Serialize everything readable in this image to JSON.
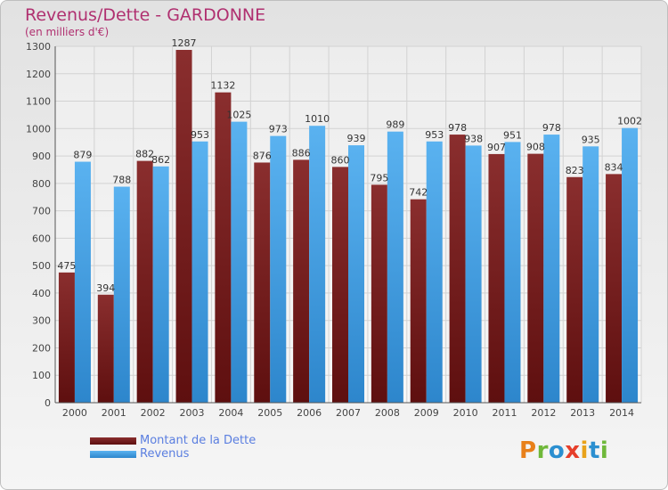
{
  "chart_data": {
    "type": "bar",
    "title": "Revenus/Dette - GARDONNE",
    "subtitle": "(en milliers d'€)",
    "xlabel": "",
    "ylabel": "",
    "ylim": [
      0,
      1300
    ],
    "y_ticks": [
      0,
      100,
      200,
      300,
      400,
      500,
      600,
      700,
      800,
      900,
      1000,
      1100,
      1200,
      1300
    ],
    "grid": true,
    "legend_position": "bottom-left",
    "categories": [
      "2000",
      "2001",
      "2002",
      "2003",
      "2004",
      "2005",
      "2006",
      "2007",
      "2008",
      "2009",
      "2010",
      "2011",
      "2012",
      "2013",
      "2014"
    ],
    "series": [
      {
        "name": "Montant de la Dette",
        "color": "#7a2525",
        "values": [
          475,
          394,
          882,
          1287,
          1132,
          876,
          886,
          860,
          795,
          742,
          978,
          907,
          908,
          823,
          834
        ]
      },
      {
        "name": "Revenus",
        "color": "#4fa6e6",
        "values": [
          879,
          788,
          862,
          953,
          1025,
          973,
          1010,
          939,
          989,
          953,
          938,
          951,
          978,
          935,
          1002
        ]
      }
    ]
  },
  "logo": {
    "letters": [
      {
        "char": "P",
        "color": "#e8801a"
      },
      {
        "char": "r",
        "color": "#6fb83a"
      },
      {
        "char": "o",
        "color": "#2b8fd0"
      },
      {
        "char": "x",
        "color": "#e63e2a"
      },
      {
        "char": "i",
        "color": "#e8a21a"
      },
      {
        "char": "t",
        "color": "#2b8fd0"
      },
      {
        "char": "i",
        "color": "#6fb83a"
      }
    ]
  }
}
